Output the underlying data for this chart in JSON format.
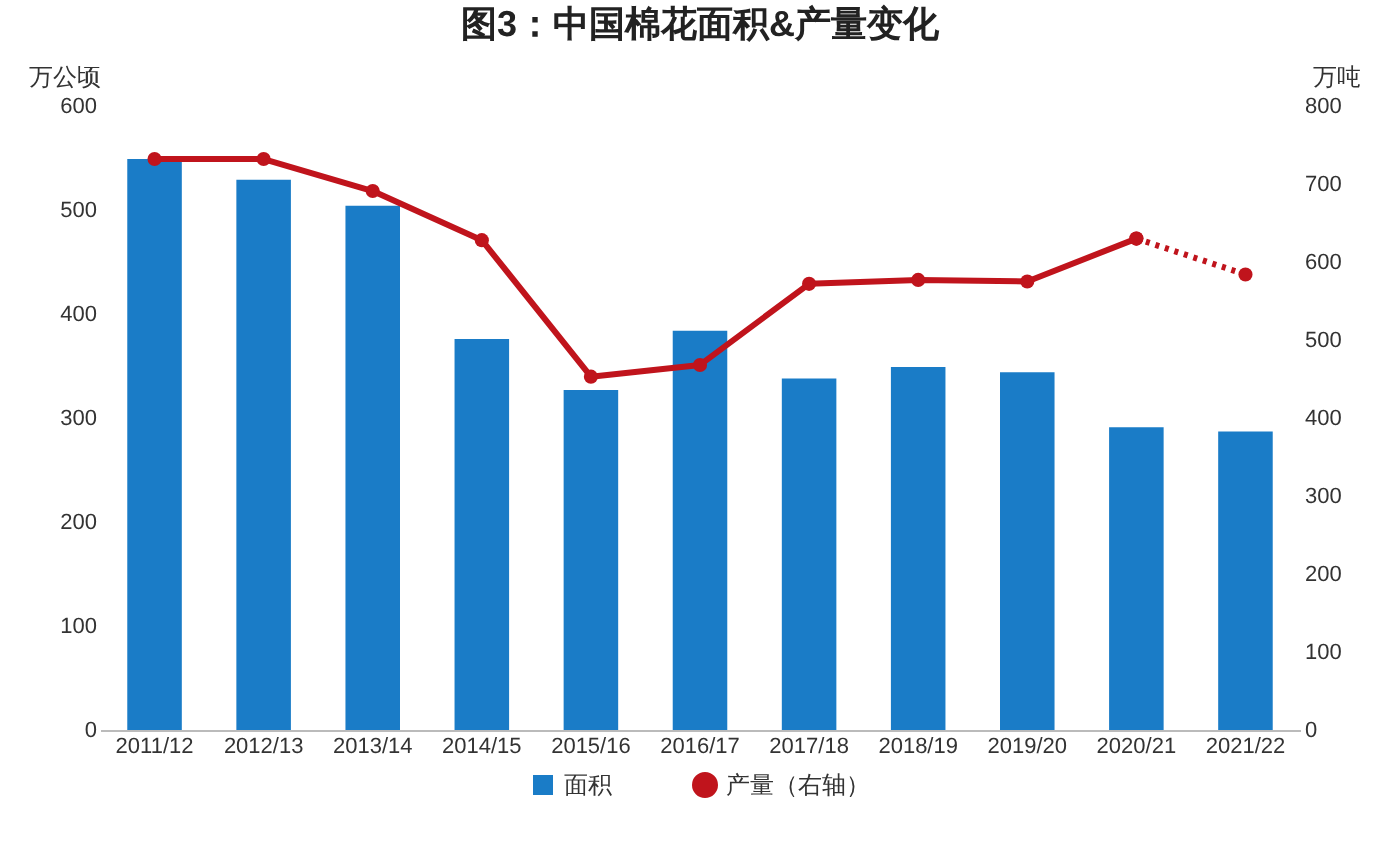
{
  "chart_data": {
    "type": "bar",
    "title": "图3：中国棉花面积&产量变化",
    "ylabel": "万公顷",
    "y2label": "万吨",
    "categories": [
      "2011/12",
      "2012/13",
      "2013/14",
      "2014/15",
      "2015/16",
      "2016/17",
      "2017/18",
      "2018/19",
      "2019/20",
      "2020/21",
      "2021/22"
    ],
    "series": [
      {
        "name": "面积",
        "type": "bar",
        "color": "#1a7cc7",
        "values": [
          549,
          529,
          504,
          376,
          327,
          384,
          338,
          349,
          344,
          291,
          287
        ]
      },
      {
        "name": "产量（右轴）",
        "type": "line",
        "axis": "y2",
        "color": "#c0141c",
        "marker": "circle",
        "line_style": "solid",
        "values": [
          732,
          732,
          691,
          628,
          453,
          468,
          572,
          577,
          575,
          630,
          null
        ]
      },
      {
        "type": "line",
        "axis": "y2",
        "color": "#c0141c",
        "marker": "circle",
        "line_style": "dotted",
        "values": [
          null,
          null,
          null,
          null,
          null,
          null,
          null,
          null,
          null,
          630,
          584
        ]
      }
    ],
    "ylim": [
      0,
      600
    ],
    "yticks": [
      0,
      100,
      200,
      300,
      400,
      500,
      600
    ],
    "y2lim": [
      0,
      800
    ],
    "y2ticks": [
      0,
      100,
      200,
      300,
      400,
      500,
      600,
      700,
      800
    ],
    "grid": false,
    "legend": "bottom"
  }
}
